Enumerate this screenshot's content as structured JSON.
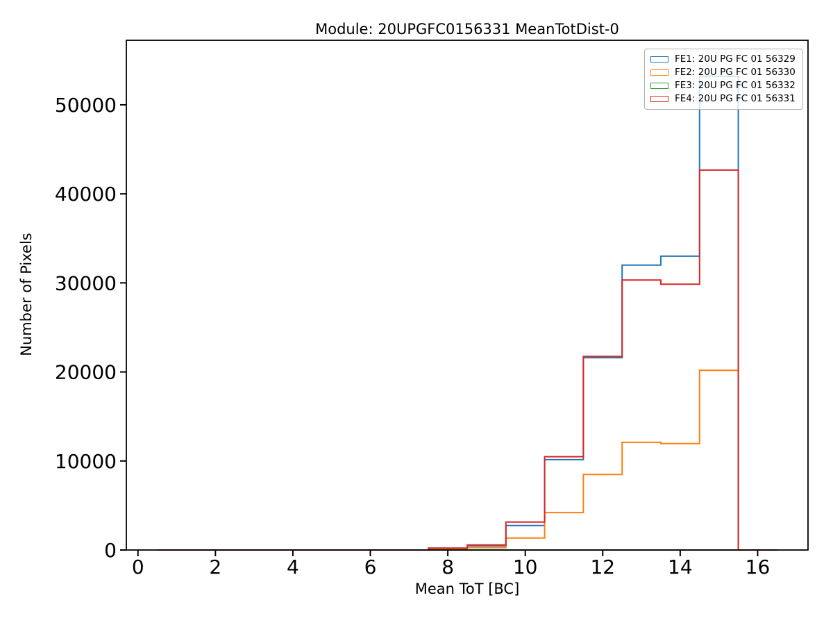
{
  "figure": {
    "title": "Module: 20UPGFC0156331 MeanTotDist-0",
    "xlabel": "Mean ToT [BC]",
    "ylabel": "Number of Pixels"
  },
  "chart_data": {
    "type": "step-histogram",
    "title": "Module: 20UPGFC0156331 MeanTotDist-0",
    "xlabel": "Mean ToT [BC]",
    "ylabel": "Number of Pixels",
    "grid": false,
    "legend_position": "upper right",
    "xlim": [
      -0.3,
      17.3
    ],
    "ylim": [
      0,
      57250
    ],
    "xticks": [
      0,
      2,
      4,
      6,
      8,
      10,
      12,
      14,
      16
    ],
    "yticks": [
      0,
      10000,
      20000,
      30000,
      40000,
      50000
    ],
    "bin_edges": [
      0.5,
      1.5,
      2.5,
      3.5,
      4.5,
      5.5,
      6.5,
      7.5,
      8.5,
      9.5,
      10.5,
      11.5,
      12.5,
      13.5,
      14.5,
      15.5,
      16.5
    ],
    "series": [
      {
        "name": "FE1: 20U PG FC 01 56329",
        "color": "#1f77b4",
        "values": [
          0,
          0,
          0,
          0,
          0,
          0,
          0,
          200,
          470,
          2750,
          10150,
          21600,
          32000,
          33000,
          53200,
          0
        ]
      },
      {
        "name": "FE2: 20U PG FC 01 56330",
        "color": "#ff7f0e",
        "values": [
          0,
          0,
          0,
          0,
          0,
          0,
          0,
          100,
          260,
          1350,
          4200,
          8480,
          12100,
          11950,
          20180,
          0
        ]
      },
      {
        "name": "FE3: 20U PG FC 01 56332",
        "color": "#2ca02c",
        "values": [
          0,
          0,
          0,
          0,
          0,
          0,
          0,
          0,
          0,
          0,
          0,
          0,
          0,
          0,
          0,
          0
        ]
      },
      {
        "name": "FE4: 20U PG FC 01 56331",
        "color": "#d62728",
        "values": [
          0,
          0,
          0,
          0,
          0,
          0,
          0,
          210,
          570,
          3140,
          10480,
          21740,
          30320,
          29850,
          42670,
          0
        ]
      }
    ]
  }
}
